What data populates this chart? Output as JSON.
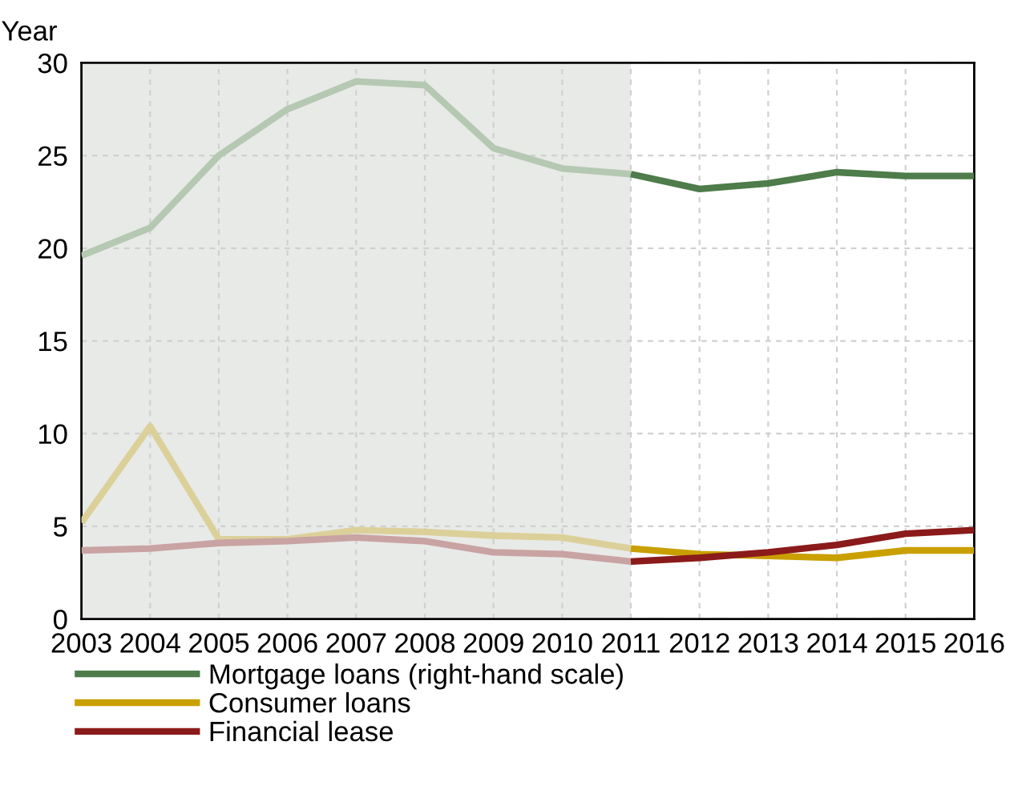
{
  "chart_data": {
    "type": "line",
    "ylabel": "Year",
    "xlim": [
      2003,
      2016
    ],
    "xticks": [
      2003,
      2004,
      2005,
      2006,
      2007,
      2008,
      2009,
      2010,
      2011,
      2012,
      2013,
      2014,
      2015,
      2016
    ],
    "ylim": [
      0,
      30
    ],
    "yticks": [
      0,
      5,
      10,
      15,
      20,
      25,
      30
    ],
    "grid": true,
    "legend": "bottom",
    "line_style": "solid",
    "marker": "none",
    "bands": [
      {
        "axis": "x",
        "from": 2003,
        "to": 2011,
        "color": "#e8eae7"
      }
    ],
    "series": [
      {
        "color": "#b5c9b2",
        "x": [
          2003,
          2004,
          2005,
          2006,
          2007,
          2008,
          2009,
          2010,
          2011
        ],
        "values": [
          19.6,
          21.1,
          25.0,
          27.5,
          29.0,
          28.8,
          25.4,
          24.3,
          24.0
        ]
      },
      {
        "color": "#dcd09a",
        "x": [
          2003,
          2004,
          2005,
          2006,
          2007,
          2008,
          2009,
          2010,
          2011
        ],
        "values": [
          5.2,
          10.4,
          4.3,
          4.3,
          4.8,
          4.7,
          4.5,
          4.4,
          3.8
        ]
      },
      {
        "color": "#c9a3a3",
        "x": [
          2003,
          2004,
          2005,
          2006,
          2007,
          2008,
          2009,
          2010,
          2011
        ],
        "values": [
          3.7,
          3.8,
          4.1,
          4.2,
          4.4,
          4.2,
          3.6,
          3.5,
          3.1
        ]
      },
      {
        "name": "Mortgage loans (right-hand scale)",
        "color": "#4e7c4a",
        "x": [
          2011,
          2012,
          2013,
          2014,
          2015,
          2016
        ],
        "values": [
          24.0,
          23.2,
          23.5,
          24.1,
          23.9,
          23.9
        ]
      },
      {
        "name": "Consumer loans",
        "color": "#c9a000",
        "x": [
          2011,
          2012,
          2013,
          2014,
          2015,
          2016
        ],
        "values": [
          3.8,
          3.5,
          3.4,
          3.3,
          3.7,
          3.7
        ]
      },
      {
        "name": "Financial lease",
        "color": "#8b1a1a",
        "x": [
          2011,
          2012,
          2013,
          2014,
          2015,
          2016
        ],
        "values": [
          3.1,
          3.3,
          3.6,
          4.0,
          4.6,
          4.8
        ]
      }
    ]
  }
}
